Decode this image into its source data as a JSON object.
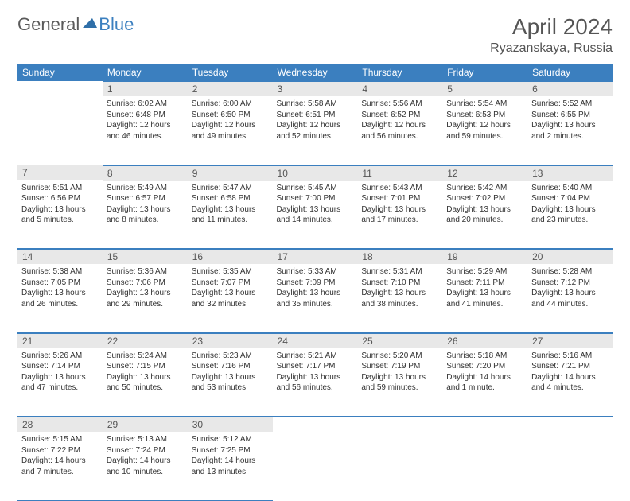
{
  "brand": {
    "part1": "General",
    "part2": "Blue"
  },
  "title": "April 2024",
  "location": "Ryazanskaya, Russia",
  "colors": {
    "header_bg": "#3b7fbf",
    "daynum_bg": "#e8e8e8",
    "text": "#333333",
    "border": "#3b7fbf"
  },
  "weekdays": [
    "Sunday",
    "Monday",
    "Tuesday",
    "Wednesday",
    "Thursday",
    "Friday",
    "Saturday"
  ],
  "weeks": [
    [
      null,
      {
        "n": "1",
        "sr": "Sunrise: 6:02 AM",
        "ss": "Sunset: 6:48 PM",
        "dl": "Daylight: 12 hours and 46 minutes."
      },
      {
        "n": "2",
        "sr": "Sunrise: 6:00 AM",
        "ss": "Sunset: 6:50 PM",
        "dl": "Daylight: 12 hours and 49 minutes."
      },
      {
        "n": "3",
        "sr": "Sunrise: 5:58 AM",
        "ss": "Sunset: 6:51 PM",
        "dl": "Daylight: 12 hours and 52 minutes."
      },
      {
        "n": "4",
        "sr": "Sunrise: 5:56 AM",
        "ss": "Sunset: 6:52 PM",
        "dl": "Daylight: 12 hours and 56 minutes."
      },
      {
        "n": "5",
        "sr": "Sunrise: 5:54 AM",
        "ss": "Sunset: 6:53 PM",
        "dl": "Daylight: 12 hours and 59 minutes."
      },
      {
        "n": "6",
        "sr": "Sunrise: 5:52 AM",
        "ss": "Sunset: 6:55 PM",
        "dl": "Daylight: 13 hours and 2 minutes."
      }
    ],
    [
      {
        "n": "7",
        "sr": "Sunrise: 5:51 AM",
        "ss": "Sunset: 6:56 PM",
        "dl": "Daylight: 13 hours and 5 minutes."
      },
      {
        "n": "8",
        "sr": "Sunrise: 5:49 AM",
        "ss": "Sunset: 6:57 PM",
        "dl": "Daylight: 13 hours and 8 minutes."
      },
      {
        "n": "9",
        "sr": "Sunrise: 5:47 AM",
        "ss": "Sunset: 6:58 PM",
        "dl": "Daylight: 13 hours and 11 minutes."
      },
      {
        "n": "10",
        "sr": "Sunrise: 5:45 AM",
        "ss": "Sunset: 7:00 PM",
        "dl": "Daylight: 13 hours and 14 minutes."
      },
      {
        "n": "11",
        "sr": "Sunrise: 5:43 AM",
        "ss": "Sunset: 7:01 PM",
        "dl": "Daylight: 13 hours and 17 minutes."
      },
      {
        "n": "12",
        "sr": "Sunrise: 5:42 AM",
        "ss": "Sunset: 7:02 PM",
        "dl": "Daylight: 13 hours and 20 minutes."
      },
      {
        "n": "13",
        "sr": "Sunrise: 5:40 AM",
        "ss": "Sunset: 7:04 PM",
        "dl": "Daylight: 13 hours and 23 minutes."
      }
    ],
    [
      {
        "n": "14",
        "sr": "Sunrise: 5:38 AM",
        "ss": "Sunset: 7:05 PM",
        "dl": "Daylight: 13 hours and 26 minutes."
      },
      {
        "n": "15",
        "sr": "Sunrise: 5:36 AM",
        "ss": "Sunset: 7:06 PM",
        "dl": "Daylight: 13 hours and 29 minutes."
      },
      {
        "n": "16",
        "sr": "Sunrise: 5:35 AM",
        "ss": "Sunset: 7:07 PM",
        "dl": "Daylight: 13 hours and 32 minutes."
      },
      {
        "n": "17",
        "sr": "Sunrise: 5:33 AM",
        "ss": "Sunset: 7:09 PM",
        "dl": "Daylight: 13 hours and 35 minutes."
      },
      {
        "n": "18",
        "sr": "Sunrise: 5:31 AM",
        "ss": "Sunset: 7:10 PM",
        "dl": "Daylight: 13 hours and 38 minutes."
      },
      {
        "n": "19",
        "sr": "Sunrise: 5:29 AM",
        "ss": "Sunset: 7:11 PM",
        "dl": "Daylight: 13 hours and 41 minutes."
      },
      {
        "n": "20",
        "sr": "Sunrise: 5:28 AM",
        "ss": "Sunset: 7:12 PM",
        "dl": "Daylight: 13 hours and 44 minutes."
      }
    ],
    [
      {
        "n": "21",
        "sr": "Sunrise: 5:26 AM",
        "ss": "Sunset: 7:14 PM",
        "dl": "Daylight: 13 hours and 47 minutes."
      },
      {
        "n": "22",
        "sr": "Sunrise: 5:24 AM",
        "ss": "Sunset: 7:15 PM",
        "dl": "Daylight: 13 hours and 50 minutes."
      },
      {
        "n": "23",
        "sr": "Sunrise: 5:23 AM",
        "ss": "Sunset: 7:16 PM",
        "dl": "Daylight: 13 hours and 53 minutes."
      },
      {
        "n": "24",
        "sr": "Sunrise: 5:21 AM",
        "ss": "Sunset: 7:17 PM",
        "dl": "Daylight: 13 hours and 56 minutes."
      },
      {
        "n": "25",
        "sr": "Sunrise: 5:20 AM",
        "ss": "Sunset: 7:19 PM",
        "dl": "Daylight: 13 hours and 59 minutes."
      },
      {
        "n": "26",
        "sr": "Sunrise: 5:18 AM",
        "ss": "Sunset: 7:20 PM",
        "dl": "Daylight: 14 hours and 1 minute."
      },
      {
        "n": "27",
        "sr": "Sunrise: 5:16 AM",
        "ss": "Sunset: 7:21 PM",
        "dl": "Daylight: 14 hours and 4 minutes."
      }
    ],
    [
      {
        "n": "28",
        "sr": "Sunrise: 5:15 AM",
        "ss": "Sunset: 7:22 PM",
        "dl": "Daylight: 14 hours and 7 minutes."
      },
      {
        "n": "29",
        "sr": "Sunrise: 5:13 AM",
        "ss": "Sunset: 7:24 PM",
        "dl": "Daylight: 14 hours and 10 minutes."
      },
      {
        "n": "30",
        "sr": "Sunrise: 5:12 AM",
        "ss": "Sunset: 7:25 PM",
        "dl": "Daylight: 14 hours and 13 minutes."
      },
      null,
      null,
      null,
      null
    ]
  ]
}
